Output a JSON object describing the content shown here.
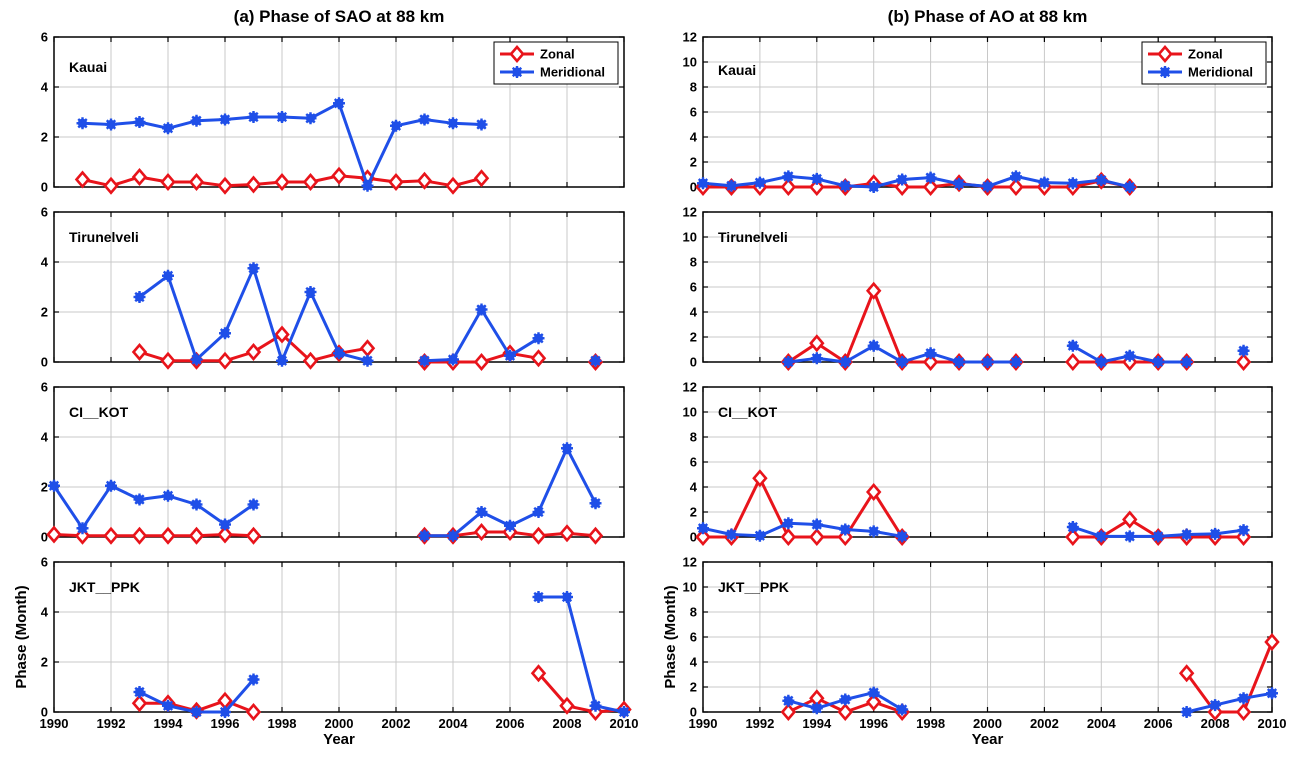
{
  "colors": {
    "zonal": "#e8141b",
    "meridional": "#1f4fe8",
    "grid": "#c8c8c8",
    "axis": "#000000"
  },
  "chart_data": [
    {
      "type": "line",
      "title": "(a) Phase of SAO at 88 km",
      "xlabel": "Year",
      "ylabel": "Phase (Month)",
      "xlim": [
        1990,
        2010
      ],
      "xticks": [
        1990,
        1992,
        1994,
        1996,
        1998,
        2000,
        2002,
        2004,
        2006,
        2008,
        2010
      ],
      "ylim": [
        0,
        6
      ],
      "yticks": [
        0,
        2,
        4,
        6
      ],
      "grid": true,
      "legend": {
        "position": "top-right",
        "entries": [
          "Zonal",
          "Meridional"
        ]
      },
      "panels": [
        {
          "station": "Kauai",
          "series": [
            {
              "name": "Zonal",
              "color": "#e8141b",
              "marker": "diamond",
              "x": [
                1991,
                1992,
                1993,
                1994,
                1995,
                1996,
                1997,
                1998,
                1999,
                2000,
                2001,
                2002,
                2003,
                2004,
                2005
              ],
              "y": [
                0.3,
                0.05,
                0.4,
                0.2,
                0.2,
                0.05,
                0.1,
                0.2,
                0.2,
                0.45,
                0.35,
                0.2,
                0.25,
                0.05,
                0.35
              ]
            },
            {
              "name": "Meridional",
              "color": "#1f4fe8",
              "marker": "star",
              "x": [
                1991,
                1992,
                1993,
                1994,
                1995,
                1996,
                1997,
                1998,
                1999,
                2000,
                2001,
                2002,
                2003,
                2004,
                2005
              ],
              "y": [
                2.55,
                2.5,
                2.6,
                2.35,
                2.65,
                2.7,
                2.8,
                2.8,
                2.75,
                3.35,
                0.05,
                2.45,
                2.7,
                2.55,
                2.5
              ]
            }
          ]
        },
        {
          "station": "Tirunelveli",
          "series": [
            {
              "name": "Zonal",
              "color": "#e8141b",
              "marker": "diamond",
              "segments": [
                {
                  "x": [
                    1993,
                    1994,
                    1995,
                    1996,
                    1997,
                    1998,
                    1999,
                    2000,
                    2001
                  ],
                  "y": [
                    0.4,
                    0.05,
                    0.05,
                    0.05,
                    0.4,
                    1.1,
                    0.05,
                    0.35,
                    0.55
                  ]
                },
                {
                  "x": [
                    2003,
                    2004,
                    2005,
                    2006,
                    2007
                  ],
                  "y": [
                    0.0,
                    0.0,
                    0.0,
                    0.35,
                    0.15
                  ]
                },
                {
                  "x": [
                    2009
                  ],
                  "y": [
                    0.0
                  ]
                }
              ]
            },
            {
              "name": "Meridional",
              "color": "#1f4fe8",
              "marker": "star",
              "segments": [
                {
                  "x": [
                    1993,
                    1994,
                    1995,
                    1996,
                    1997,
                    1998,
                    1999,
                    2000,
                    2001
                  ],
                  "y": [
                    2.6,
                    3.45,
                    0.1,
                    1.15,
                    3.75,
                    0.05,
                    2.8,
                    0.35,
                    0.05
                  ]
                },
                {
                  "x": [
                    2003,
                    2004,
                    2005,
                    2006,
                    2007
                  ],
                  "y": [
                    0.05,
                    0.1,
                    2.1,
                    0.25,
                    0.95
                  ]
                },
                {
                  "x": [
                    2009
                  ],
                  "y": [
                    0.05
                  ]
                }
              ]
            }
          ]
        },
        {
          "station": "CI__KOT",
          "series": [
            {
              "name": "Zonal",
              "color": "#e8141b",
              "marker": "diamond",
              "segments": [
                {
                  "x": [
                    1990,
                    1991,
                    1992,
                    1993,
                    1994,
                    1995,
                    1996,
                    1997
                  ],
                  "y": [
                    0.1,
                    0.05,
                    0.05,
                    0.05,
                    0.05,
                    0.05,
                    0.1,
                    0.05
                  ]
                },
                {
                  "x": [
                    2003,
                    2004,
                    2005,
                    2006,
                    2007,
                    2008,
                    2009
                  ],
                  "y": [
                    0.05,
                    0.05,
                    0.2,
                    0.2,
                    0.05,
                    0.15,
                    0.05
                  ]
                }
              ]
            },
            {
              "name": "Meridional",
              "color": "#1f4fe8",
              "marker": "star",
              "segments": [
                {
                  "x": [
                    1990,
                    1991,
                    1992,
                    1993,
                    1994,
                    1995,
                    1996,
                    1997
                  ],
                  "y": [
                    2.05,
                    0.35,
                    2.05,
                    1.5,
                    1.65,
                    1.3,
                    0.5,
                    1.3
                  ]
                },
                {
                  "x": [
                    2003,
                    2004,
                    2005,
                    2006,
                    2007,
                    2008,
                    2009
                  ],
                  "y": [
                    0.05,
                    0.05,
                    1.0,
                    0.45,
                    1.0,
                    3.55,
                    1.35
                  ]
                }
              ]
            }
          ]
        },
        {
          "station": "JKT__PPK",
          "series": [
            {
              "name": "Zonal",
              "color": "#e8141b",
              "marker": "diamond",
              "segments": [
                {
                  "x": [
                    1993,
                    1994,
                    1995,
                    1996,
                    1997
                  ],
                  "y": [
                    0.35,
                    0.35,
                    0.05,
                    0.45,
                    0.0
                  ]
                },
                {
                  "x": [
                    2007,
                    2008,
                    2009,
                    2010
                  ],
                  "y": [
                    1.55,
                    0.25,
                    0.0,
                    0.1
                  ]
                }
              ]
            },
            {
              "name": "Meridional",
              "color": "#1f4fe8",
              "marker": "star",
              "segments": [
                {
                  "x": [
                    1993,
                    1994,
                    1995,
                    1996,
                    1997
                  ],
                  "y": [
                    0.8,
                    0.25,
                    0.0,
                    0.0,
                    1.3
                  ]
                },
                {
                  "x": [
                    2007,
                    2008,
                    2009,
                    2010
                  ],
                  "y": [
                    4.6,
                    4.6,
                    0.25,
                    0.0
                  ]
                }
              ]
            }
          ]
        }
      ]
    },
    {
      "type": "line",
      "title": "(b) Phase of AO at 88 km",
      "xlabel": "Year",
      "ylabel": "Phase (Month)",
      "xlim": [
        1990,
        2010
      ],
      "xticks": [
        1990,
        1992,
        1994,
        1996,
        1998,
        2000,
        2002,
        2004,
        2006,
        2008,
        2010
      ],
      "ylim": [
        0,
        12
      ],
      "yticks": [
        0,
        2,
        4,
        6,
        8,
        10,
        12
      ],
      "grid": true,
      "legend": {
        "position": "top-right",
        "entries": [
          "Zonal",
          "Meridional"
        ]
      },
      "panels": [
        {
          "station": "Kauai",
          "series": [
            {
              "name": "Zonal",
              "color": "#e8141b",
              "marker": "diamond",
              "x": [
                1990,
                1991,
                1992,
                1993,
                1994,
                1995,
                1996,
                1997,
                1998,
                1999,
                2000,
                2001,
                2002,
                2003,
                2004,
                2005
              ],
              "y": [
                0.0,
                0.0,
                0.0,
                0.0,
                0.0,
                0.0,
                0.3,
                0.0,
                0.0,
                0.3,
                0.0,
                0.0,
                0.0,
                0.0,
                0.5,
                0.0
              ]
            },
            {
              "name": "Meridional",
              "color": "#1f4fe8",
              "marker": "star",
              "x": [
                1990,
                1991,
                1992,
                1993,
                1994,
                1995,
                1996,
                1997,
                1998,
                1999,
                2000,
                2001,
                2002,
                2003,
                2004,
                2005
              ],
              "y": [
                0.3,
                0.1,
                0.35,
                0.85,
                0.65,
                0.1,
                0.0,
                0.6,
                0.75,
                0.25,
                0.05,
                0.85,
                0.35,
                0.3,
                0.55,
                0.0
              ]
            }
          ]
        },
        {
          "station": "Tirunelveli",
          "series": [
            {
              "name": "Zonal",
              "color": "#e8141b",
              "marker": "diamond",
              "segments": [
                {
                  "x": [
                    1993,
                    1994,
                    1995,
                    1996,
                    1997,
                    1998,
                    1999,
                    2000,
                    2001
                  ],
                  "y": [
                    0.0,
                    1.5,
                    0.0,
                    5.7,
                    0.0,
                    0.0,
                    0.0,
                    0.0,
                    0.0
                  ]
                },
                {
                  "x": [
                    2003,
                    2004,
                    2005,
                    2006,
                    2007
                  ],
                  "y": [
                    0.0,
                    0.0,
                    0.0,
                    0.0,
                    0.0
                  ]
                },
                {
                  "x": [
                    2009
                  ],
                  "y": [
                    0.0
                  ]
                }
              ]
            },
            {
              "name": "Meridional",
              "color": "#1f4fe8",
              "marker": "star",
              "segments": [
                {
                  "x": [
                    1993,
                    1994,
                    1995,
                    1996,
                    1997,
                    1998,
                    1999,
                    2000,
                    2001
                  ],
                  "y": [
                    0.0,
                    0.3,
                    0.0,
                    1.3,
                    0.0,
                    0.7,
                    0.0,
                    0.0,
                    0.0
                  ]
                },
                {
                  "x": [
                    2003,
                    2004,
                    2005,
                    2006,
                    2007
                  ],
                  "y": [
                    1.3,
                    0.0,
                    0.5,
                    0.0,
                    0.0
                  ]
                },
                {
                  "x": [
                    2009
                  ],
                  "y": [
                    0.9
                  ]
                }
              ]
            }
          ]
        },
        {
          "station": "CI__KOT",
          "series": [
            {
              "name": "Zonal",
              "color": "#e8141b",
              "marker": "diamond",
              "segments": [
                {
                  "x": [
                    1990,
                    1991,
                    1992,
                    1993,
                    1994,
                    1995,
                    1996,
                    1997
                  ],
                  "y": [
                    0.0,
                    0.0,
                    4.7,
                    0.0,
                    0.0,
                    0.0,
                    3.6,
                    0.0
                  ]
                },
                {
                  "x": [
                    2003,
                    2004,
                    2005,
                    2006,
                    2007,
                    2008,
                    2009
                  ],
                  "y": [
                    0.0,
                    0.0,
                    1.4,
                    0.0,
                    0.0,
                    0.0,
                    0.0
                  ]
                }
              ]
            },
            {
              "name": "Meridional",
              "color": "#1f4fe8",
              "marker": "star",
              "segments": [
                {
                  "x": [
                    1990,
                    1991,
                    1992,
                    1993,
                    1994,
                    1995,
                    1996,
                    1997
                  ],
                  "y": [
                    0.7,
                    0.2,
                    0.1,
                    1.1,
                    1.0,
                    0.6,
                    0.45,
                    0.05
                  ]
                },
                {
                  "x": [
                    2003,
                    2004,
                    2005,
                    2006,
                    2007,
                    2008,
                    2009
                  ],
                  "y": [
                    0.8,
                    0.05,
                    0.05,
                    0.05,
                    0.2,
                    0.25,
                    0.55
                  ]
                }
              ]
            }
          ]
        },
        {
          "station": "JKT__PPK",
          "series": [
            {
              "name": "Zonal",
              "color": "#e8141b",
              "marker": "diamond",
              "segments": [
                {
                  "x": [
                    1993,
                    1994,
                    1995,
                    1996,
                    1997
                  ],
                  "y": [
                    0.0,
                    1.1,
                    0.0,
                    0.8,
                    0.0
                  ]
                },
                {
                  "x": [
                    2007,
                    2008,
                    2009,
                    2010
                  ],
                  "y": [
                    3.1,
                    0.0,
                    0.0,
                    5.6
                  ]
                }
              ]
            },
            {
              "name": "Meridional",
              "color": "#1f4fe8",
              "marker": "star",
              "segments": [
                {
                  "x": [
                    1993,
                    1994,
                    1995,
                    1996,
                    1997
                  ],
                  "y": [
                    0.9,
                    0.3,
                    1.0,
                    1.55,
                    0.2
                  ]
                },
                {
                  "x": [
                    2007,
                    2008,
                    2009,
                    2010
                  ],
                  "y": [
                    0.0,
                    0.55,
                    1.1,
                    1.5
                  ]
                }
              ]
            }
          ]
        }
      ]
    }
  ]
}
